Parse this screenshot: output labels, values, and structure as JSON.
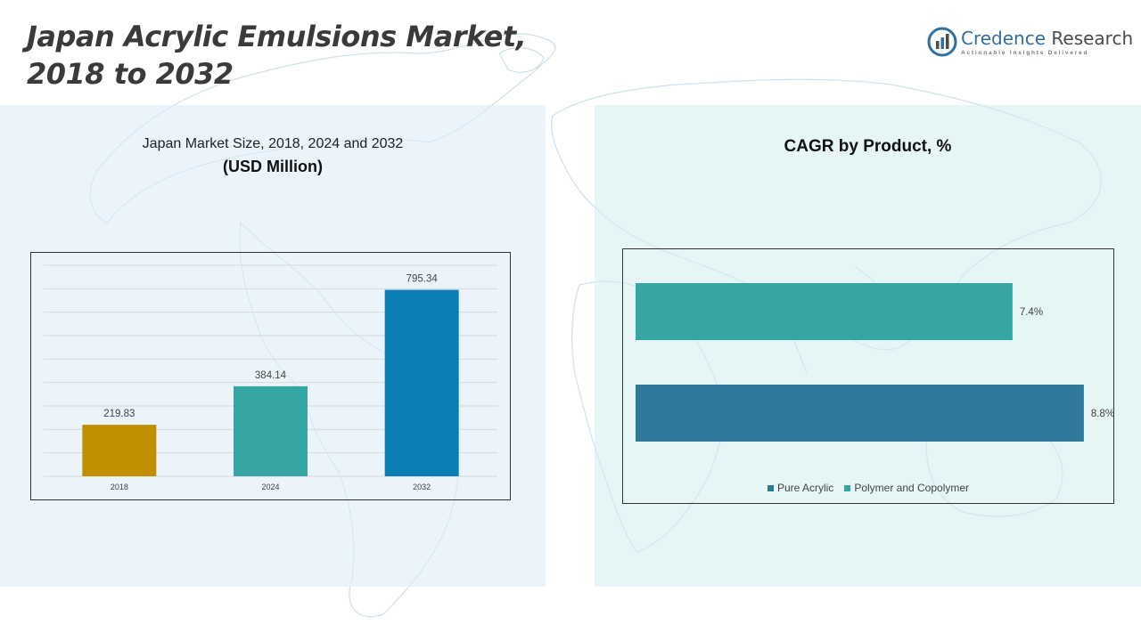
{
  "header": {
    "title_line1": "Japan Acrylic Emulsions Market,",
    "title_line2": "2018 to 2032"
  },
  "brand": {
    "name_part1": "Credence",
    "name_part2": "Research",
    "tagline": "Actionable Insights Delivered",
    "icon": "bar-chart-globe-icon",
    "color": "#2f6fa3"
  },
  "left_panel": {
    "subtitle": "Japan Market Size, 2018, 2024 and 2032",
    "unit": "(USD Million)"
  },
  "right_panel": {
    "title": "CAGR by Product, %"
  },
  "chart_data": [
    {
      "type": "bar",
      "title": "Japan Market Size, 2018, 2024 and 2032",
      "ylabel": "(USD Million)",
      "categories": [
        "2018",
        "2024",
        "2032"
      ],
      "values": [
        219.83,
        384.14,
        795.34
      ],
      "value_labels": [
        "219.83",
        "384.14",
        "795.34"
      ],
      "colors": [
        "#c08f00",
        "#35a6a3",
        "#0b7fb3"
      ],
      "ylim": [
        0,
        900
      ],
      "grid": true
    },
    {
      "type": "bar",
      "orientation": "horizontal",
      "title": "CAGR by Product, %",
      "series": [
        {
          "name": "Pure Acrylic",
          "value": 8.8,
          "label": "8.8%",
          "color": "#2e7a9a"
        },
        {
          "name": "Polymer and Copolymer",
          "value": 7.4,
          "label": "7.4%",
          "color": "#35a6a3"
        }
      ],
      "xlim": [
        0,
        9.1
      ],
      "legend": "bottom"
    }
  ]
}
